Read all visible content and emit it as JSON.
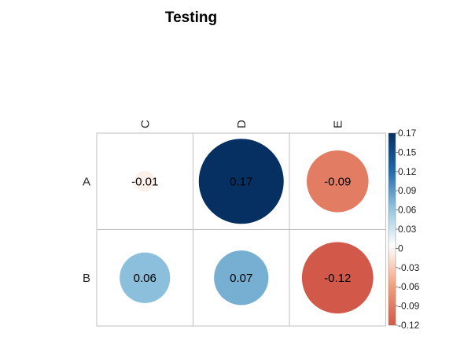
{
  "chart_data": {
    "type": "heatmap",
    "style": "correlation-circles",
    "title": "Testing",
    "rows": [
      "A",
      "B"
    ],
    "columns": [
      "C",
      "D",
      "E"
    ],
    "values": [
      [
        -0.01,
        0.17,
        -0.09
      ],
      [
        0.06,
        0.07,
        -0.12
      ]
    ],
    "value_labels": [
      [
        "-0.01",
        "0.17",
        "-0.09"
      ],
      [
        "0.06",
        "0.07",
        "-0.12"
      ]
    ],
    "colorbar": {
      "range": [
        -0.12,
        0.17
      ],
      "ticks": [
        0.17,
        0.15,
        0.12,
        0.09,
        0.06,
        0.03,
        0,
        -0.03,
        -0.06,
        -0.09,
        -0.12
      ],
      "tick_labels": [
        "0.17",
        "0.15",
        "0.12",
        "0.09",
        "0.06",
        "0.03",
        "0",
        "-0.03",
        "-0.06",
        "-0.09",
        "-0.12"
      ],
      "placement": "right"
    },
    "colors": {
      "strong_positive": "#053061",
      "positive": "#2166AC",
      "light_positive": "#92C5DE",
      "neutral": "#FFFFFF",
      "light_negative": "#F4A582",
      "negative": "#D6604D",
      "strong_negative": "#B2182B",
      "grid": "#C0C0C0"
    },
    "grid": true
  }
}
